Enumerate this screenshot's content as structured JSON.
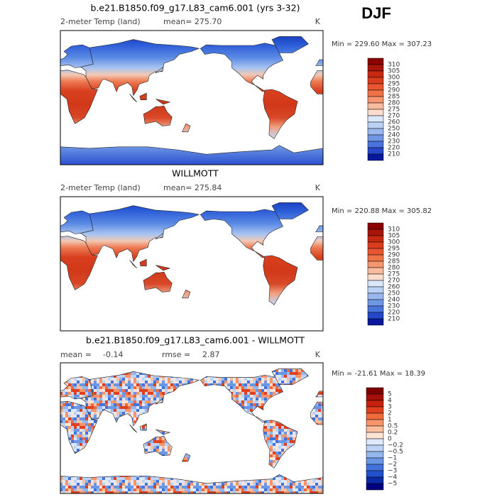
{
  "season": "DJF",
  "panels": [
    {
      "title": "b.e21.B1850.f09_g17.L83_cam6.001 (yrs 3-32)",
      "variable": "2-meter Temp (land)",
      "mean": "mean= 275.70",
      "units": "K",
      "range": "Min = 229.60 Max = 307.23",
      "colorbar": {
        "labels": [
          "310",
          "305",
          "300",
          "295",
          "290",
          "285",
          "280",
          "275",
          "270",
          "260",
          "250",
          "240",
          "230",
          "220",
          "210"
        ],
        "colors": [
          "#8b0000",
          "#a81508",
          "#c72810",
          "#dc3c1e",
          "#e85530",
          "#f07348",
          "#f59670",
          "#f9bb9e",
          "#fcdccc",
          "#dbe7fb",
          "#bcd2f5",
          "#98b8ef",
          "#7097e5",
          "#4875db",
          "#2448c8",
          "#08189c"
        ]
      }
    },
    {
      "title": "WILLMOTT",
      "variable": "2-meter Temp (land)",
      "mean": "mean= 275.84",
      "units": "K",
      "range": "Min = 220.88 Max = 305.82",
      "colorbar": {
        "labels": [
          "310",
          "305",
          "300",
          "295",
          "290",
          "285",
          "280",
          "275",
          "270",
          "260",
          "250",
          "240",
          "230",
          "220",
          "210"
        ],
        "colors": [
          "#8b0000",
          "#a81508",
          "#c72810",
          "#dc3c1e",
          "#e85530",
          "#f07348",
          "#f59670",
          "#f9bb9e",
          "#fcdccc",
          "#dbe7fb",
          "#bcd2f5",
          "#98b8ef",
          "#7097e5",
          "#4875db",
          "#2448c8",
          "#08189c"
        ]
      }
    },
    {
      "title": "b.e21.B1850.f09_g17.L83_cam6.001 - WILLMOTT",
      "mean_label": "mean =",
      "mean": "-0.14",
      "rmse_label": "rmse =",
      "rmse": "2.87",
      "units": "K",
      "range": "Min = -21.61 Max =  18.39",
      "colorbar": {
        "labels": [
          "5",
          "4",
          "3",
          "2",
          "1",
          "0.5",
          "0.2",
          "0",
          "−0.2",
          "−0.5",
          "−1",
          "−2",
          "−3",
          "−4",
          "−5"
        ],
        "colors": [
          "#7f0000",
          "#a50f0a",
          "#c8200e",
          "#e0401e",
          "#f06a3c",
          "#f7946a",
          "#fbbfa0",
          "#fde3d4",
          "#dde9fb",
          "#bcd3f5",
          "#93b6ee",
          "#6b95e5",
          "#4472dc",
          "#2250cc",
          "#0a2aa8",
          "#000080"
        ]
      }
    }
  ]
}
